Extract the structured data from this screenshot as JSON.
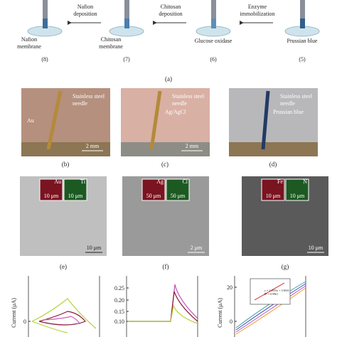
{
  "panel_a": {
    "steps": [
      {
        "label": [
          "Nafion",
          "membrane"
        ],
        "number": "(8)"
      },
      {
        "label": [
          "Chitosan",
          "membrane"
        ],
        "number": "(7)"
      },
      {
        "label": [
          "Glucose oxidase"
        ],
        "number": "(6)"
      },
      {
        "label": [
          "Prussian blue"
        ],
        "number": "(5)"
      }
    ],
    "arrows": [
      [
        "Nafion",
        "deposition"
      ],
      [
        "Chitosan",
        "deposition"
      ],
      [
        "Enzyme",
        "immobilization"
      ]
    ],
    "caption": "(a)"
  },
  "photos": [
    {
      "needle": [
        "Stainless steel",
        "needle"
      ],
      "tip": "Au",
      "scale": "2 mm",
      "caption": "(b)"
    },
    {
      "needle": [
        "Stainless steel",
        "needle"
      ],
      "tip": "Ag/AgCl",
      "scale": "2 mm",
      "caption": "(c)"
    },
    {
      "needle": [
        "Stainless steel",
        "needle"
      ],
      "tip": "Prussian blue",
      "caption": "(d)"
    }
  ],
  "sem": [
    {
      "elements": [
        "Au",
        "Ti"
      ],
      "inset_scale": [
        "10 μm",
        "10 μm"
      ],
      "scale": "10 μm",
      "caption": "(e)"
    },
    {
      "elements": [
        "Ag",
        "Cl"
      ],
      "inset_scale": [
        "50 μm",
        "50 μm"
      ],
      "scale": "2 μm",
      "caption": "(f)"
    },
    {
      "elements": [
        "Fe",
        "N"
      ],
      "inset_scale": [
        "10 μm",
        "10 μm"
      ],
      "scale": "10 μm",
      "caption": "(g)"
    }
  ],
  "plots": [
    {
      "y_label": "Current (μA)",
      "yticks": [
        "0"
      ]
    },
    {
      "yticks": [
        "0.25",
        "0.20",
        "0.15",
        "0.10"
      ]
    },
    {
      "y_label": "Current (μA)",
      "yticks": [
        "20",
        "0"
      ],
      "inset": [
        "y = 1.4955x + 3.9616",
        "R² = 0.9961"
      ]
    }
  ]
}
